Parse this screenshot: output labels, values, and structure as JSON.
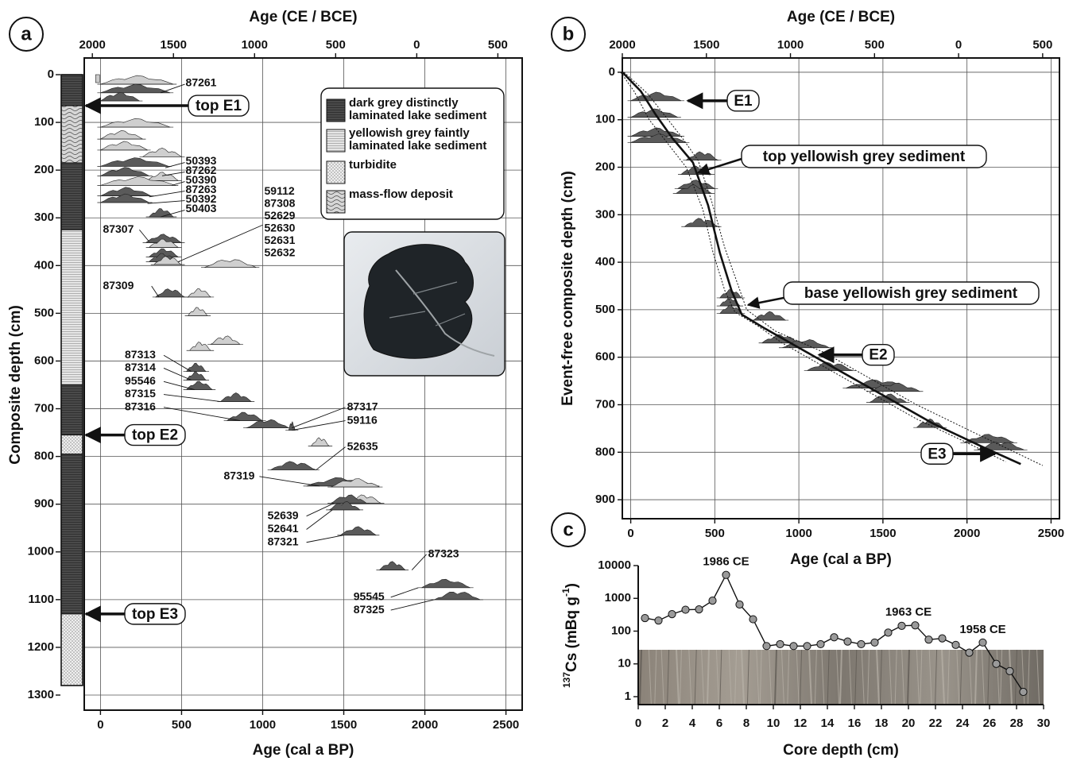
{
  "panel_labels": {
    "a": "a",
    "b": "b",
    "c": "c"
  },
  "chart_data": [
    {
      "id": "a",
      "type": "scatter",
      "x_top_label": "Age (CE / BCE)",
      "x_top_ticks": [
        "2000",
        "1500",
        "1000",
        "500",
        "0",
        "500"
      ],
      "x_top_tick_ages": [
        -50,
        450,
        950,
        1450,
        1950,
        2450
      ],
      "xlabel": "Age (cal a BP)",
      "xlim": [
        -100,
        2600
      ],
      "xticks": [
        0,
        500,
        1000,
        1500,
        2000,
        2500
      ],
      "ylabel": "Composite depth (cm)",
      "ylim": [
        0,
        1300
      ],
      "yticks": [
        0,
        100,
        200,
        300,
        400,
        500,
        600,
        700,
        800,
        900,
        1000,
        1100,
        1200,
        1300
      ],
      "grid": true,
      "stratigraphy": [
        {
          "top": 0,
          "base": 65,
          "unit": "dark"
        },
        {
          "top": 65,
          "base": 185,
          "unit": "massflow"
        },
        {
          "top": 185,
          "base": 325,
          "unit": "dark"
        },
        {
          "top": 325,
          "base": 650,
          "unit": "yellow"
        },
        {
          "top": 650,
          "base": 755,
          "unit": "dark"
        },
        {
          "top": 755,
          "base": 795,
          "unit": "turbidite"
        },
        {
          "top": 795,
          "base": 1130,
          "unit": "dark"
        },
        {
          "top": 1130,
          "base": 1280,
          "unit": "turbidite"
        }
      ],
      "event_markers": [
        {
          "label": "top E1",
          "depth": 65
        },
        {
          "label": "top E2",
          "depth": 755
        },
        {
          "label": "top E3",
          "depth": 1130
        }
      ],
      "legend": {
        "placement": "top-right",
        "entries": [
          {
            "key": "dark",
            "lines": [
              "dark grey distinctly",
              "laminated lake sediment"
            ]
          },
          {
            "key": "yellow",
            "lines": [
              "yellowish grey faintly",
              "laminated lake sediment"
            ]
          },
          {
            "key": "turbidite",
            "lines": [
              "turbidite"
            ]
          },
          {
            "key": "massflow",
            "lines": [
              "mass-flow deposit"
            ]
          }
        ]
      },
      "sample_labels": [
        {
          "lines": [
            "87261"
          ],
          "depth": 18,
          "age": 525
        },
        {
          "lines": [
            "50393"
          ],
          "depth": 182,
          "age": 525
        },
        {
          "lines": [
            "87262"
          ],
          "depth": 202,
          "age": 525
        },
        {
          "lines": [
            "50390"
          ],
          "depth": 222,
          "age": 525
        },
        {
          "lines": [
            "87263"
          ],
          "depth": 242,
          "age": 525
        },
        {
          "lines": [
            "50392"
          ],
          "depth": 262,
          "age": 525
        },
        {
          "lines": [
            "50403"
          ],
          "depth": 282,
          "age": 525
        },
        {
          "lines": [
            "59112",
            "87308",
            "52629",
            "52630",
            "52631",
            "52632"
          ],
          "depth": 245,
          "age": 1010
        },
        {
          "lines": [
            "87307"
          ],
          "depth": 325,
          "age": 15
        },
        {
          "lines": [
            "87309"
          ],
          "depth": 443,
          "age": 15
        },
        {
          "lines": [
            "87313"
          ],
          "depth": 588,
          "age": 150
        },
        {
          "lines": [
            "87314"
          ],
          "depth": 615,
          "age": 150
        },
        {
          "lines": [
            "95546"
          ],
          "depth": 643,
          "age": 150
        },
        {
          "lines": [
            "87315"
          ],
          "depth": 670,
          "age": 150
        },
        {
          "lines": [
            "87316"
          ],
          "depth": 697,
          "age": 150
        },
        {
          "lines": [
            "87317"
          ],
          "depth": 697,
          "age": 1520
        },
        {
          "lines": [
            "59116"
          ],
          "depth": 725,
          "age": 1520
        },
        {
          "lines": [
            "52635"
          ],
          "depth": 780,
          "age": 1520
        },
        {
          "lines": [
            "87319"
          ],
          "depth": 842,
          "age": 760
        },
        {
          "lines": [
            "52639"
          ],
          "depth": 925,
          "age": 1030
        },
        {
          "lines": [
            "52641"
          ],
          "depth": 953,
          "age": 1030
        },
        {
          "lines": [
            "87321"
          ],
          "depth": 980,
          "age": 1030
        },
        {
          "lines": [
            "87323"
          ],
          "depth": 1005,
          "age": 2020
        },
        {
          "lines": [
            "95545"
          ],
          "depth": 1095,
          "age": 1560
        },
        {
          "lines": [
            "87325"
          ],
          "depth": 1122,
          "age": 1560
        }
      ],
      "distributions": [
        {
          "d": 20,
          "a0": 0,
          "a1": 450,
          "f": "light"
        },
        {
          "d": 38,
          "a0": 0,
          "a1": 430,
          "f": "dark"
        },
        {
          "d": 55,
          "a0": 0,
          "a1": 240,
          "f": "dark"
        },
        {
          "d": 110,
          "a0": 0,
          "a1": 430,
          "f": "light"
        },
        {
          "d": 135,
          "a0": 0,
          "a1": 260,
          "f": "light"
        },
        {
          "d": 158,
          "a0": 0,
          "a1": 290,
          "f": "light"
        },
        {
          "d": 172,
          "a0": 260,
          "a1": 500,
          "f": "light"
        },
        {
          "d": 192,
          "a0": 0,
          "a1": 420,
          "f": "dark"
        },
        {
          "d": 212,
          "a0": 0,
          "a1": 300,
          "f": "dark"
        },
        {
          "d": 222,
          "a0": 290,
          "a1": 480,
          "f": "light"
        },
        {
          "d": 232,
          "a0": 0,
          "a1": 460,
          "f": "light"
        },
        {
          "d": 254,
          "a0": 0,
          "a1": 310,
          "f": "dark"
        },
        {
          "d": 268,
          "a0": 0,
          "a1": 300,
          "f": "dark"
        },
        {
          "d": 298,
          "a0": 300,
          "a1": 450,
          "f": "dark"
        },
        {
          "d": 352,
          "a0": 280,
          "a1": 500,
          "f": "dark"
        },
        {
          "d": 362,
          "a0": 300,
          "a1": 480,
          "f": "light"
        },
        {
          "d": 382,
          "a0": 300,
          "a1": 480,
          "f": "dark"
        },
        {
          "d": 392,
          "a0": 300,
          "a1": 470,
          "f": "dark"
        },
        {
          "d": 398,
          "a0": 330,
          "a1": 500,
          "f": "light"
        },
        {
          "d": 404,
          "a0": 640,
          "a1": 960,
          "f": "light"
        },
        {
          "d": 466,
          "a0": 340,
          "a1": 520,
          "f": "dark"
        },
        {
          "d": 466,
          "a0": 540,
          "a1": 680,
          "f": "light"
        },
        {
          "d": 505,
          "a0": 540,
          "a1": 660,
          "f": "light"
        },
        {
          "d": 565,
          "a0": 680,
          "a1": 860,
          "f": "light"
        },
        {
          "d": 578,
          "a0": 550,
          "a1": 680,
          "f": "light"
        },
        {
          "d": 622,
          "a0": 530,
          "a1": 650,
          "f": "dark"
        },
        {
          "d": 640,
          "a0": 530,
          "a1": 650,
          "f": "dark"
        },
        {
          "d": 660,
          "a0": 530,
          "a1": 690,
          "f": "dark"
        },
        {
          "d": 685,
          "a0": 740,
          "a1": 930,
          "f": "dark"
        },
        {
          "d": 725,
          "a0": 780,
          "a1": 1000,
          "f": "dark"
        },
        {
          "d": 740,
          "a0": 900,
          "a1": 1160,
          "f": "dark"
        },
        {
          "d": 745,
          "a0": 1160,
          "a1": 1200,
          "f": "dark"
        },
        {
          "d": 778,
          "a0": 1300,
          "a1": 1410,
          "f": "light"
        },
        {
          "d": 828,
          "a0": 1050,
          "a1": 1330,
          "f": "dark"
        },
        {
          "d": 862,
          "a0": 1270,
          "a1": 1700,
          "f": "dark"
        },
        {
          "d": 864,
          "a0": 1420,
          "a1": 1720,
          "f": "light"
        },
        {
          "d": 898,
          "a0": 1520,
          "a1": 1730,
          "f": "light"
        },
        {
          "d": 898,
          "a0": 1420,
          "a1": 1640,
          "f": "dark"
        },
        {
          "d": 912,
          "a0": 1410,
          "a1": 1600,
          "f": "dark"
        },
        {
          "d": 965,
          "a0": 1480,
          "a1": 1700,
          "f": "dark"
        },
        {
          "d": 1038,
          "a0": 1720,
          "a1": 1880,
          "f": "dark"
        },
        {
          "d": 1075,
          "a0": 1980,
          "a1": 2280,
          "f": "dark"
        },
        {
          "d": 1100,
          "a0": 2060,
          "a1": 2340,
          "f": "dark"
        }
      ],
      "photo_alt": "leaf macrofossil photograph"
    },
    {
      "id": "b",
      "type": "line",
      "x_top_label": "Age (CE / BCE)",
      "x_top_ticks": [
        "2000",
        "1500",
        "1000",
        "500",
        "0",
        "500"
      ],
      "x_top_tick_ages": [
        -50,
        450,
        950,
        1450,
        1950,
        2450
      ],
      "xlabel": "Age (cal a BP)",
      "xlim": [
        -50,
        2550
      ],
      "xticks": [
        0,
        500,
        1000,
        1500,
        2000,
        2500
      ],
      "ylabel": "Event-free composite depth (cm)",
      "ylim": [
        -30,
        940
      ],
      "yticks": [
        0,
        100,
        200,
        300,
        400,
        500,
        600,
        700,
        800,
        900
      ],
      "grid": true,
      "age_depth_model": {
        "median": [
          [
            -50,
            0
          ],
          [
            60,
            40
          ],
          [
            150,
            90
          ],
          [
            250,
            140
          ],
          [
            370,
            190
          ],
          [
            460,
            280
          ],
          [
            530,
            380
          ],
          [
            600,
            460
          ],
          [
            660,
            510
          ],
          [
            800,
            540
          ],
          [
            1000,
            580
          ],
          [
            1200,
            620
          ],
          [
            1500,
            680
          ],
          [
            1800,
            740
          ],
          [
            2100,
            790
          ],
          [
            2320,
            825
          ]
        ],
        "lower": [
          [
            -60,
            0
          ],
          [
            20,
            40
          ],
          [
            110,
            100
          ],
          [
            220,
            150
          ],
          [
            330,
            200
          ],
          [
            430,
            290
          ],
          [
            490,
            380
          ],
          [
            560,
            460
          ],
          [
            620,
            505
          ],
          [
            760,
            535
          ],
          [
            900,
            570
          ],
          [
            1100,
            610
          ],
          [
            1400,
            670
          ],
          [
            1700,
            730
          ],
          [
            2000,
            780
          ],
          [
            2230,
            820
          ]
        ],
        "upper": [
          [
            -40,
            0
          ],
          [
            100,
            45
          ],
          [
            200,
            90
          ],
          [
            300,
            135
          ],
          [
            400,
            185
          ],
          [
            480,
            270
          ],
          [
            560,
            370
          ],
          [
            640,
            450
          ],
          [
            690,
            500
          ],
          [
            860,
            545
          ],
          [
            1150,
            590
          ],
          [
            1400,
            640
          ],
          [
            1700,
            700
          ],
          [
            2050,
            760
          ],
          [
            2450,
            828
          ]
        ]
      },
      "distributions": [
        {
          "d": 60,
          "a0": 0,
          "a1": 300,
          "f": "dark"
        },
        {
          "d": 95,
          "a0": 0,
          "a1": 280,
          "f": "dark"
        },
        {
          "d": 135,
          "a0": 0,
          "a1": 300,
          "f": "dark"
        },
        {
          "d": 148,
          "a0": 0,
          "a1": 330,
          "f": "dark"
        },
        {
          "d": 185,
          "a0": 330,
          "a1": 520,
          "f": "dark"
        },
        {
          "d": 215,
          "a0": 300,
          "a1": 480,
          "f": "dark"
        },
        {
          "d": 245,
          "a0": 280,
          "a1": 500,
          "f": "dark"
        },
        {
          "d": 255,
          "a0": 270,
          "a1": 480,
          "f": "dark"
        },
        {
          "d": 325,
          "a0": 320,
          "a1": 520,
          "f": "dark"
        },
        {
          "d": 475,
          "a0": 530,
          "a1": 660,
          "f": "dark"
        },
        {
          "d": 492,
          "a0": 530,
          "a1": 650,
          "f": "dark"
        },
        {
          "d": 508,
          "a0": 530,
          "a1": 660,
          "f": "dark"
        },
        {
          "d": 522,
          "a0": 730,
          "a1": 920,
          "f": "dark"
        },
        {
          "d": 570,
          "a0": 780,
          "a1": 1000,
          "f": "dark"
        },
        {
          "d": 580,
          "a0": 900,
          "a1": 1180,
          "f": "dark"
        },
        {
          "d": 628,
          "a0": 1050,
          "a1": 1320,
          "f": "dark"
        },
        {
          "d": 665,
          "a0": 1280,
          "a1": 1650,
          "f": "dark"
        },
        {
          "d": 672,
          "a0": 1420,
          "a1": 1720,
          "f": "dark"
        },
        {
          "d": 695,
          "a0": 1420,
          "a1": 1640,
          "f": "dark"
        },
        {
          "d": 748,
          "a0": 1700,
          "a1": 1860,
          "f": "dark"
        },
        {
          "d": 780,
          "a0": 1980,
          "a1": 2280,
          "f": "dark"
        },
        {
          "d": 795,
          "a0": 2060,
          "a1": 2340,
          "f": "dark"
        }
      ],
      "annotations": [
        {
          "label": "E1",
          "depth": 60,
          "age": 340,
          "style": "arrow-left"
        },
        {
          "label": "top yellowish grey sediment",
          "depth": 188,
          "age": 400,
          "style": "arrow-diag"
        },
        {
          "label": "base yellowish grey sediment",
          "depth": 510,
          "age": 660,
          "style": "arrow-diag"
        },
        {
          "label": "E2",
          "depth": 595,
          "age": 1130,
          "style": "arrow-left"
        },
        {
          "label": "E3",
          "depth": 820,
          "age": 2200,
          "style": "arrow-right"
        }
      ]
    },
    {
      "id": "c",
      "type": "line",
      "xlabel": "Core depth (cm)",
      "xlim": [
        0,
        30
      ],
      "xticks": [
        0,
        2,
        4,
        6,
        8,
        10,
        12,
        14,
        16,
        18,
        20,
        22,
        24,
        26,
        28,
        30
      ],
      "ylabel_main": "Cs (mBq g",
      "ylabel_isotope": "137",
      "ylabel_sup": "-1",
      "ylabel_close": ")",
      "yscale": "log",
      "ylim": [
        1,
        10000
      ],
      "yticks": [
        1,
        10,
        100,
        1000,
        10000
      ],
      "ytick_labels": [
        "1",
        "10",
        "100",
        "1000",
        "10000"
      ],
      "x": [
        0.5,
        1.5,
        2.5,
        3.5,
        4.5,
        5.5,
        6.5,
        7.5,
        8.5,
        9.5,
        10.5,
        11.5,
        12.5,
        13.5,
        14.5,
        15.5,
        16.5,
        17.5,
        18.5,
        19.5,
        20.5,
        21.5,
        22.5,
        23.5,
        24.5,
        25.5,
        26.5,
        27.5,
        28.5
      ],
      "values": [
        250,
        210,
        330,
        450,
        460,
        850,
        5200,
        650,
        230,
        35,
        40,
        35,
        35,
        40,
        65,
        48,
        40,
        45,
        90,
        145,
        150,
        55,
        60,
        38,
        22,
        45,
        10,
        6,
        1.4
      ],
      "annotations": [
        {
          "label": "1986 CE",
          "x": 6.5,
          "y": 5200
        },
        {
          "label": "1963 CE",
          "x": 20.0,
          "y": 150
        },
        {
          "label": "1958 CE",
          "x": 25.5,
          "y": 45
        }
      ],
      "photo_alt": "sediment core photograph"
    }
  ]
}
